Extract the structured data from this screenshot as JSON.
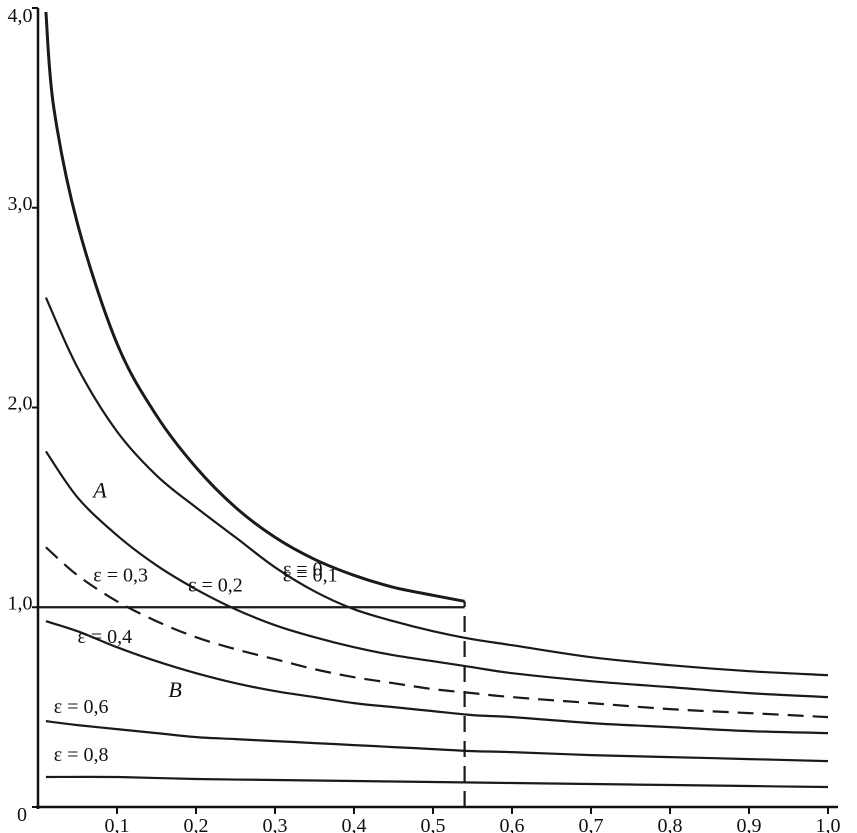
{
  "chart_data": {
    "type": "line",
    "title": "",
    "xlabel": "",
    "ylabel": "",
    "xlim": [
      0,
      1.0
    ],
    "ylim": [
      0,
      4.0
    ],
    "x_ticks": [
      {
        "value": 0.1,
        "label": "0,1"
      },
      {
        "value": 0.2,
        "label": "0,2"
      },
      {
        "value": 0.3,
        "label": "0,3"
      },
      {
        "value": 0.4,
        "label": "0,4"
      },
      {
        "value": 0.5,
        "label": "0,5"
      },
      {
        "value": 0.6,
        "label": "0,6"
      },
      {
        "value": 0.7,
        "label": "0,7"
      },
      {
        "value": 0.8,
        "label": "0,8"
      },
      {
        "value": 0.9,
        "label": "0,9"
      },
      {
        "value": 1.0,
        "label": "1,0"
      }
    ],
    "y_ticks": [
      {
        "value": 0,
        "label": "0"
      },
      {
        "value": 1.0,
        "label": "1,0"
      },
      {
        "value": 2.0,
        "label": "2,0"
      },
      {
        "value": 3.0,
        "label": "3,0"
      },
      {
        "value": 4.0,
        "label": "4,0"
      }
    ],
    "series": [
      {
        "name": "ε = 0",
        "style": "solid",
        "label_at": [
          0.31,
          1.16
        ],
        "x": [
          0.01,
          0.02,
          0.05,
          0.1,
          0.15,
          0.2,
          0.25,
          0.3,
          0.35,
          0.4,
          0.45,
          0.5,
          0.54
        ],
        "y": [
          3.98,
          3.5,
          2.92,
          2.32,
          1.96,
          1.7,
          1.5,
          1.35,
          1.24,
          1.16,
          1.1,
          1.06,
          1.03
        ]
      },
      {
        "name": "ε = 0,1",
        "style": "solid",
        "label_at": [
          0.31,
          1.13
        ],
        "x": [
          0.01,
          0.05,
          0.1,
          0.15,
          0.2,
          0.25,
          0.3,
          0.35,
          0.4,
          0.45,
          0.5,
          0.55,
          0.6,
          0.7,
          0.8,
          0.9,
          1.0
        ],
        "y": [
          2.55,
          2.2,
          1.88,
          1.66,
          1.5,
          1.35,
          1.2,
          1.08,
          0.99,
          0.93,
          0.88,
          0.84,
          0.81,
          0.75,
          0.71,
          0.68,
          0.66
        ]
      },
      {
        "name": "ε = 0,2",
        "style": "solid",
        "label_at": [
          0.19,
          1.08
        ],
        "x": [
          0.01,
          0.05,
          0.1,
          0.15,
          0.2,
          0.25,
          0.3,
          0.35,
          0.4,
          0.45,
          0.5,
          0.55,
          0.6,
          0.7,
          0.8,
          0.9,
          1.0
        ],
        "y": [
          1.78,
          1.55,
          1.36,
          1.21,
          1.09,
          0.99,
          0.91,
          0.85,
          0.8,
          0.76,
          0.73,
          0.7,
          0.67,
          0.63,
          0.6,
          0.57,
          0.55
        ]
      },
      {
        "name": "ε = 0,3",
        "style": "dashed",
        "label_at": [
          0.07,
          1.13
        ],
        "x": [
          0.01,
          0.05,
          0.1,
          0.15,
          0.2,
          0.25,
          0.3,
          0.35,
          0.4,
          0.45,
          0.5,
          0.55,
          0.6,
          0.7,
          0.8,
          0.9,
          1.0
        ],
        "y": [
          1.3,
          1.16,
          1.03,
          0.93,
          0.85,
          0.79,
          0.74,
          0.69,
          0.65,
          0.62,
          0.59,
          0.57,
          0.55,
          0.52,
          0.49,
          0.47,
          0.45
        ]
      },
      {
        "name": "ε = 0,4",
        "style": "solid",
        "label_at": [
          0.05,
          0.82
        ],
        "x": [
          0.01,
          0.05,
          0.1,
          0.15,
          0.2,
          0.25,
          0.3,
          0.35,
          0.4,
          0.45,
          0.5,
          0.55,
          0.6,
          0.7,
          0.8,
          0.9,
          1.0
        ],
        "y": [
          0.93,
          0.88,
          0.8,
          0.73,
          0.67,
          0.62,
          0.58,
          0.55,
          0.52,
          0.5,
          0.48,
          0.46,
          0.45,
          0.42,
          0.4,
          0.38,
          0.37
        ]
      },
      {
        "name": "ε = 0,6",
        "style": "solid",
        "label_at": [
          0.02,
          0.47
        ],
        "x": [
          0.01,
          0.05,
          0.1,
          0.15,
          0.2,
          0.25,
          0.3,
          0.35,
          0.4,
          0.45,
          0.5,
          0.55,
          0.6,
          0.7,
          0.8,
          0.9,
          1.0
        ],
        "y": [
          0.43,
          0.41,
          0.39,
          0.37,
          0.35,
          0.34,
          0.33,
          0.32,
          0.31,
          0.3,
          0.29,
          0.28,
          0.275,
          0.26,
          0.25,
          0.24,
          0.23
        ]
      },
      {
        "name": "ε = 0,8",
        "style": "solid",
        "label_at": [
          0.02,
          0.23
        ],
        "x": [
          0.01,
          0.1,
          0.2,
          0.3,
          0.4,
          0.5,
          0.6,
          0.7,
          0.8,
          0.9,
          1.0
        ],
        "y": [
          0.15,
          0.15,
          0.14,
          0.135,
          0.13,
          0.125,
          0.12,
          0.115,
          0.11,
          0.105,
          0.1
        ]
      }
    ],
    "reference_lines": [
      {
        "type": "horizontal",
        "y": 1.0,
        "x_from": 0,
        "x_to": 0.54,
        "style": "solid"
      },
      {
        "type": "vertical",
        "x": 0.54,
        "y_from": 0,
        "y_to": 1.03,
        "style": "dashed"
      }
    ],
    "annotations": [
      {
        "text": "A",
        "x": 0.07,
        "y": 1.55
      },
      {
        "text": "B",
        "x": 0.165,
        "y": 0.55
      }
    ]
  }
}
